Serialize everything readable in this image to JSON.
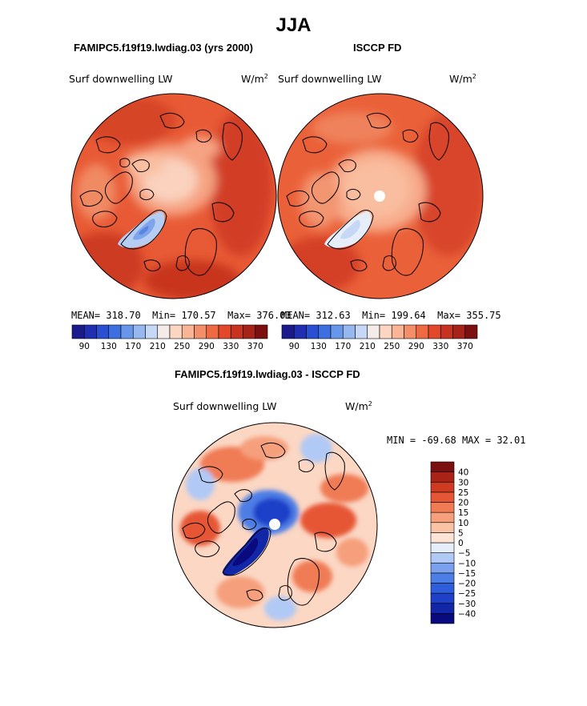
{
  "title": "JJA",
  "top_left": {
    "heading": "FAMIPC5.f19f19.lwdiag.03 (yrs 2000)",
    "variable": "Surf downwelling LW",
    "units_base": "W/m",
    "units_exp": "2",
    "stats": {
      "mean_label": "MEAN=",
      "mean": "318.70",
      "min_label": "Min=",
      "min": "170.57",
      "max_label": "Max=",
      "max": "376.03"
    }
  },
  "top_right": {
    "heading": "ISCCP FD",
    "variable": "Surf downwelling LW",
    "units_base": "W/m",
    "units_exp": "2",
    "stats": {
      "mean_label": "MEAN=",
      "mean": "312.63",
      "min_label": "Min=",
      "min": "199.64",
      "max_label": "Max=",
      "max": "355.75"
    }
  },
  "bottom": {
    "heading": "FAMIPC5.f19f19.lwdiag.03 - ISCCP FD",
    "variable": "Surf downwelling LW",
    "units_base": "W/m",
    "units_exp": "2",
    "stats": {
      "min_label": "MIN =",
      "min": "-69.68",
      "max_label": "MAX =",
      "max": "32.01"
    }
  },
  "chart_data": [
    {
      "type": "heatmap",
      "projection": "north-polar-stereographic",
      "panel": "top_left",
      "colorbar": {
        "orientation": "horizontal",
        "levels": [
          90,
          110,
          130,
          150,
          170,
          190,
          210,
          230,
          250,
          270,
          290,
          310,
          330,
          350,
          370
        ],
        "tick_labels": [
          "90",
          "130",
          "170",
          "210",
          "250",
          "290",
          "330",
          "370"
        ],
        "colors": [
          "#1a1a8c",
          "#1f2fb0",
          "#2a4fd2",
          "#3d6fe0",
          "#6796ea",
          "#96b7f0",
          "#c6d8f6",
          "#f3ece8",
          "#fcd6c2",
          "#f9b596",
          "#f48e69",
          "#ee6a42",
          "#e2482a",
          "#c83320",
          "#a6231a",
          "#7c0f10"
        ]
      }
    },
    {
      "type": "heatmap",
      "projection": "north-polar-stereographic",
      "panel": "top_right",
      "colorbar": {
        "orientation": "horizontal",
        "levels": [
          90,
          110,
          130,
          150,
          170,
          190,
          210,
          230,
          250,
          270,
          290,
          310,
          330,
          350,
          370
        ],
        "tick_labels": [
          "90",
          "130",
          "170",
          "210",
          "250",
          "290",
          "330",
          "370"
        ],
        "colors": [
          "#1a1a8c",
          "#1f2fb0",
          "#2a4fd2",
          "#3d6fe0",
          "#6796ea",
          "#96b7f0",
          "#c6d8f6",
          "#f3ece8",
          "#fcd6c2",
          "#f9b596",
          "#f48e69",
          "#ee6a42",
          "#e2482a",
          "#c83320",
          "#a6231a",
          "#7c0f10"
        ]
      }
    },
    {
      "type": "heatmap",
      "projection": "north-polar-stereographic",
      "panel": "bottom",
      "colorbar": {
        "orientation": "vertical",
        "levels": [
          -40,
          -30,
          -25,
          -20,
          -15,
          -10,
          -5,
          0,
          5,
          10,
          15,
          20,
          25,
          30,
          40
        ],
        "tick_labels": [
          "-40",
          "-30",
          "-25",
          "-20",
          "-15",
          "-10",
          "-5",
          "0",
          "5",
          "10",
          "15",
          "20",
          "25",
          "30",
          "40"
        ],
        "colors": [
          "#0a0a80",
          "#1226a8",
          "#1f40c8",
          "#2f5edc",
          "#4d7ee6",
          "#7ba1ee",
          "#b1c9f5",
          "#e6eefa",
          "#fde4d6",
          "#fac3a6",
          "#f69f7c",
          "#f07b55",
          "#e65634",
          "#cf3a22",
          "#a92316",
          "#7c0f10"
        ]
      }
    }
  ]
}
